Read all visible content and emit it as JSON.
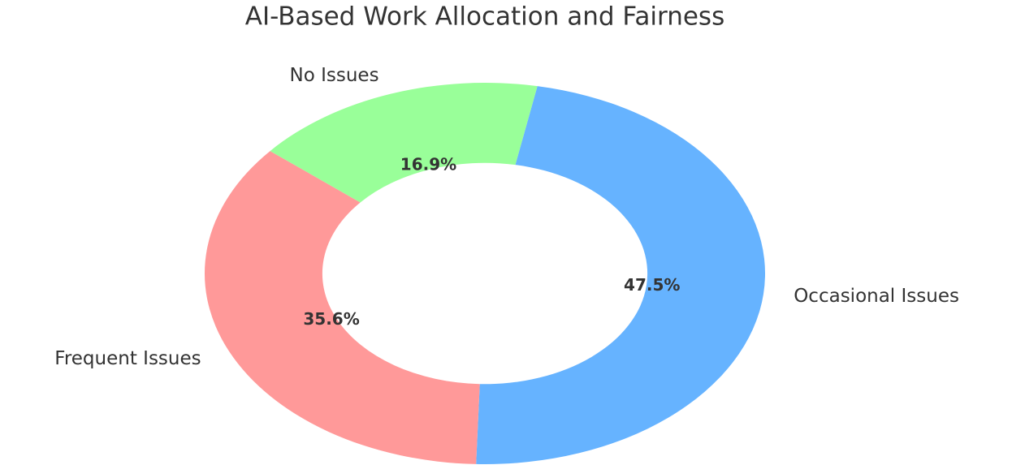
{
  "chart_data": {
    "type": "donut",
    "title": "AI-Based Work Allocation and Fairness",
    "categories": [
      "Occasional Issues",
      "Frequent Issues",
      "No Issues"
    ],
    "values": [
      47.5,
      35.6,
      16.9
    ],
    "value_labels": [
      "47.5%",
      "35.6%",
      "16.9%"
    ],
    "colors": [
      "#66b3ff",
      "#ff9999",
      "#99ff99"
    ]
  }
}
